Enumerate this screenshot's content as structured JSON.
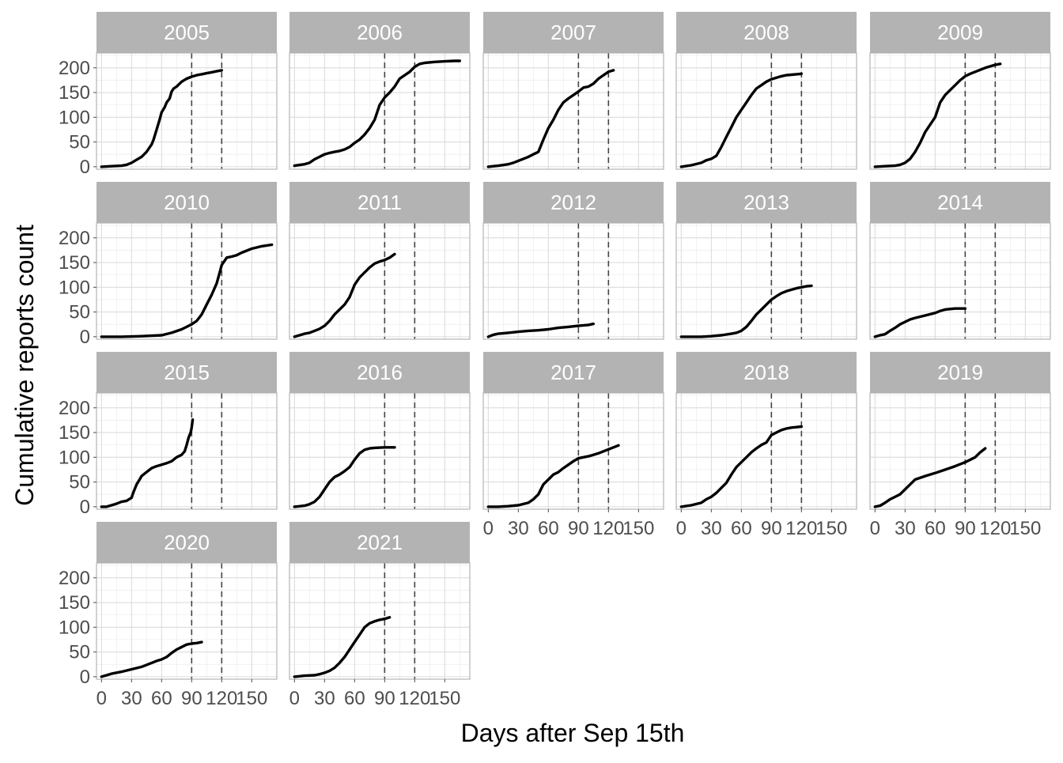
{
  "chart_data": {
    "type": "line",
    "layout": "faceted small multiples, 5 columns",
    "xlabel": "Days after Sep 15th",
    "ylabel": "Cumulative reports count",
    "xlim": [
      -5,
      175
    ],
    "ylim": [
      -5,
      230
    ],
    "x_ticks": [
      0,
      30,
      60,
      90,
      120,
      150
    ],
    "y_ticks": [
      0,
      50,
      100,
      150,
      200
    ],
    "reference_lines_x": [
      90,
      120
    ],
    "grid": true,
    "line_color": "#000000",
    "strip_color": "#b3b3b3",
    "panels": [
      {
        "year": "2005",
        "x": [
          0,
          10,
          20,
          25,
          30,
          35,
          40,
          45,
          50,
          52,
          55,
          58,
          60,
          63,
          65,
          68,
          70,
          72,
          75,
          78,
          80,
          85,
          90,
          95,
          100,
          105,
          110,
          115,
          120
        ],
        "y": [
          0,
          1,
          2,
          4,
          8,
          14,
          20,
          30,
          45,
          55,
          75,
          95,
          110,
          120,
          130,
          138,
          152,
          158,
          162,
          168,
          172,
          178,
          182,
          185,
          187,
          189,
          191,
          193,
          195
        ]
      },
      {
        "year": "2006",
        "x": [
          0,
          10,
          15,
          20,
          25,
          30,
          35,
          40,
          45,
          50,
          55,
          60,
          65,
          70,
          75,
          80,
          85,
          90,
          95,
          100,
          105,
          110,
          115,
          120,
          125,
          130,
          140,
          150,
          160,
          165
        ],
        "y": [
          2,
          5,
          8,
          15,
          20,
          25,
          28,
          30,
          32,
          35,
          40,
          48,
          55,
          65,
          78,
          95,
          125,
          140,
          150,
          162,
          178,
          185,
          192,
          202,
          208,
          210,
          212,
          213,
          214,
          214
        ]
      },
      {
        "year": "2007",
        "x": [
          0,
          10,
          20,
          25,
          30,
          35,
          40,
          45,
          50,
          55,
          60,
          65,
          70,
          75,
          80,
          85,
          90,
          95,
          100,
          105,
          110,
          115,
          120,
          125
        ],
        "y": [
          0,
          2,
          5,
          8,
          12,
          16,
          20,
          25,
          30,
          55,
          78,
          95,
          115,
          130,
          138,
          145,
          152,
          160,
          162,
          168,
          178,
          185,
          192,
          195
        ]
      },
      {
        "year": "2008",
        "x": [
          0,
          10,
          20,
          25,
          30,
          35,
          40,
          45,
          50,
          55,
          60,
          65,
          70,
          75,
          80,
          85,
          90,
          95,
          100,
          105,
          110,
          115,
          120
        ],
        "y": [
          0,
          3,
          8,
          13,
          16,
          22,
          40,
          60,
          80,
          100,
          115,
          130,
          145,
          158,
          165,
          172,
          177,
          180,
          183,
          185,
          186,
          187,
          188
        ]
      },
      {
        "year": "2009",
        "x": [
          0,
          10,
          20,
          25,
          30,
          35,
          40,
          45,
          50,
          55,
          60,
          65,
          70,
          75,
          80,
          85,
          90,
          95,
          100,
          105,
          110,
          115,
          120,
          125
        ],
        "y": [
          0,
          1,
          2,
          4,
          8,
          16,
          30,
          48,
          70,
          85,
          100,
          130,
          145,
          155,
          165,
          175,
          183,
          188,
          192,
          196,
          200,
          203,
          206,
          208
        ]
      },
      {
        "year": "2010",
        "x": [
          0,
          20,
          40,
          60,
          70,
          80,
          85,
          90,
          95,
          100,
          105,
          110,
          115,
          118,
          120,
          125,
          130,
          135,
          140,
          150,
          160,
          170
        ],
        "y": [
          0,
          0,
          1,
          3,
          8,
          15,
          20,
          25,
          32,
          45,
          65,
          85,
          108,
          130,
          145,
          160,
          162,
          165,
          170,
          178,
          183,
          186
        ]
      },
      {
        "year": "2011",
        "x": [
          0,
          5,
          10,
          15,
          20,
          25,
          30,
          35,
          40,
          45,
          50,
          55,
          60,
          65,
          70,
          75,
          80,
          85,
          90,
          95,
          100
        ],
        "y": [
          0,
          3,
          6,
          8,
          12,
          16,
          22,
          32,
          45,
          55,
          65,
          80,
          105,
          120,
          130,
          140,
          148,
          152,
          155,
          160,
          167
        ]
      },
      {
        "year": "2012",
        "x": [
          0,
          5,
          10,
          20,
          30,
          40,
          50,
          60,
          70,
          80,
          90,
          100,
          105
        ],
        "y": [
          0,
          4,
          6,
          8,
          10,
          12,
          13,
          15,
          18,
          20,
          22,
          24,
          26
        ]
      },
      {
        "year": "2013",
        "x": [
          0,
          20,
          30,
          40,
          50,
          55,
          60,
          65,
          70,
          75,
          80,
          85,
          90,
          95,
          100,
          105,
          110,
          115,
          120,
          125,
          130
        ],
        "y": [
          0,
          0,
          1,
          3,
          6,
          8,
          12,
          20,
          32,
          45,
          55,
          65,
          75,
          82,
          88,
          92,
          95,
          98,
          100,
          102,
          103
        ]
      },
      {
        "year": "2014",
        "x": [
          0,
          5,
          10,
          15,
          20,
          25,
          30,
          35,
          40,
          50,
          60,
          65,
          70,
          75,
          80,
          85,
          90
        ],
        "y": [
          0,
          3,
          5,
          12,
          18,
          25,
          30,
          35,
          38,
          43,
          48,
          52,
          55,
          56,
          57,
          57,
          57
        ]
      },
      {
        "year": "2015",
        "x": [
          0,
          5,
          10,
          15,
          20,
          25,
          30,
          32,
          35,
          38,
          40,
          45,
          50,
          55,
          60,
          65,
          70,
          75,
          80,
          83,
          85,
          87,
          89,
          90,
          91
        ],
        "y": [
          0,
          0,
          3,
          6,
          10,
          12,
          18,
          30,
          45,
          55,
          62,
          70,
          78,
          82,
          85,
          88,
          92,
          100,
          105,
          112,
          125,
          140,
          150,
          160,
          176
        ]
      },
      {
        "year": "2016",
        "x": [
          0,
          10,
          15,
          20,
          25,
          30,
          35,
          40,
          45,
          50,
          55,
          60,
          65,
          70,
          75,
          80,
          90,
          100
        ],
        "y": [
          0,
          2,
          5,
          10,
          20,
          35,
          50,
          60,
          65,
          72,
          80,
          95,
          108,
          115,
          118,
          119,
          120,
          120
        ]
      },
      {
        "year": "2017",
        "x": [
          0,
          10,
          20,
          30,
          40,
          45,
          50,
          55,
          60,
          65,
          70,
          75,
          80,
          85,
          90,
          95,
          100,
          105,
          110,
          115,
          120,
          125,
          130
        ],
        "y": [
          0,
          0,
          1,
          3,
          8,
          15,
          25,
          45,
          55,
          65,
          70,
          78,
          85,
          92,
          98,
          100,
          102,
          105,
          108,
          112,
          116,
          120,
          124
        ]
      },
      {
        "year": "2018",
        "x": [
          0,
          10,
          20,
          25,
          30,
          35,
          40,
          45,
          50,
          55,
          60,
          65,
          70,
          75,
          80,
          85,
          90,
          95,
          100,
          105,
          110,
          115,
          120
        ],
        "y": [
          0,
          3,
          8,
          15,
          20,
          28,
          38,
          48,
          65,
          80,
          90,
          100,
          110,
          118,
          125,
          130,
          145,
          150,
          155,
          158,
          160,
          161,
          162
        ]
      },
      {
        "year": "2019",
        "x": [
          0,
          5,
          10,
          15,
          20,
          25,
          30,
          35,
          40,
          50,
          60,
          70,
          80,
          90,
          100,
          105,
          110
        ],
        "y": [
          0,
          2,
          8,
          15,
          20,
          25,
          35,
          45,
          55,
          62,
          68,
          75,
          82,
          90,
          100,
          110,
          118
        ]
      },
      {
        "year": "2020",
        "x": [
          0,
          5,
          10,
          20,
          30,
          40,
          50,
          55,
          60,
          65,
          70,
          75,
          80,
          85,
          90,
          95,
          100
        ],
        "y": [
          0,
          3,
          6,
          10,
          15,
          20,
          28,
          32,
          35,
          40,
          48,
          55,
          60,
          65,
          67,
          68,
          70
        ]
      },
      {
        "year": "2021",
        "x": [
          0,
          10,
          20,
          25,
          30,
          35,
          40,
          45,
          50,
          55,
          60,
          65,
          70,
          75,
          80,
          85,
          90,
          95
        ],
        "y": [
          0,
          2,
          3,
          5,
          8,
          12,
          18,
          28,
          40,
          55,
          70,
          85,
          100,
          108,
          112,
          115,
          117,
          120
        ]
      }
    ]
  }
}
